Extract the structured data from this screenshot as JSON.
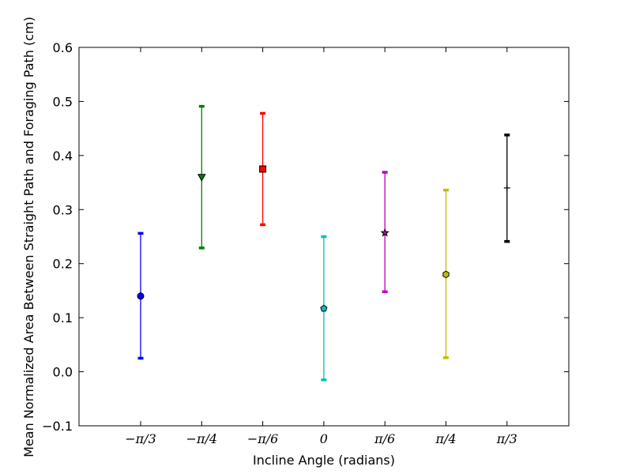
{
  "chart_data": {
    "type": "scatter",
    "title": "",
    "xlabel": "Incline Angle (radians)",
    "ylabel": "Mean Normalized Area Between Straight Path and Foraging Path (cm)",
    "ylim": [
      -0.1,
      0.6
    ],
    "yticks": [
      "−0.1",
      "0.0",
      "0.1",
      "0.2",
      "0.3",
      "0.4",
      "0.5",
      "0.6"
    ],
    "ytick_values": [
      -0.1,
      0.0,
      0.1,
      0.2,
      0.3,
      0.4,
      0.5,
      0.6
    ],
    "grid": false,
    "legend": "none",
    "categories": [
      "−π/3",
      "−π/4",
      "−π/6",
      "0",
      "π/6",
      "π/4",
      "π/3"
    ],
    "points": [
      {
        "category": "−π/3",
        "mean": 0.14,
        "lower": 0.025,
        "upper": 0.256,
        "marker": "circle",
        "color": "#0000ff"
      },
      {
        "category": "−π/4",
        "mean": 0.36,
        "lower": 0.229,
        "upper": 0.491,
        "marker": "triangle-down",
        "color": "#008000"
      },
      {
        "category": "−π/6",
        "mean": 0.375,
        "lower": 0.272,
        "upper": 0.478,
        "marker": "square",
        "color": "#ff0000"
      },
      {
        "category": "0",
        "mean": 0.117,
        "lower": -0.015,
        "upper": 0.25,
        "marker": "pentagon",
        "color": "#00bfbf"
      },
      {
        "category": "π/6",
        "mean": 0.257,
        "lower": 0.148,
        "upper": 0.369,
        "marker": "star",
        "color": "#bf00bf"
      },
      {
        "category": "π/4",
        "mean": 0.18,
        "lower": 0.026,
        "upper": 0.336,
        "marker": "hexagon",
        "color": "#bfbf00"
      },
      {
        "category": "π/3",
        "mean": 0.34,
        "lower": 0.241,
        "upper": 0.438,
        "marker": "plus",
        "color": "#000000"
      }
    ]
  }
}
